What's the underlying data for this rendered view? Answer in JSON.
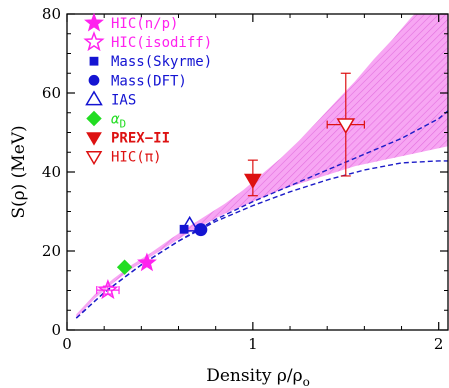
{
  "chart_data": {
    "type": "scatter",
    "title": "",
    "xlabel": "Density ρ/ρ",
    "xlabel_sub": "o",
    "ylabel": "S(ρ)  (MeV)",
    "xlim": [
      0,
      2.05
    ],
    "ylim": [
      0,
      80
    ],
    "xticks": [
      0,
      1,
      2
    ],
    "yticks": [
      0,
      20,
      40,
      60,
      80
    ],
    "xtick_labels": [
      "0",
      "1",
      "2"
    ],
    "ytick_labels": [
      "0",
      "20",
      "40",
      "60",
      "80"
    ],
    "grid": false,
    "legend_position": "top-left",
    "colors": {
      "band_fill": "#f7a6f3",
      "band_hatch": "#e36fdf",
      "curve": "#1c1cc8",
      "magenta": "#ff22ee",
      "blue": "#1414d2",
      "green": "#22dd22",
      "red": "#dd1111"
    },
    "band": {
      "x": [
        0.05,
        0.15,
        0.25,
        0.35,
        0.45,
        0.55,
        0.65,
        0.75,
        0.85,
        0.95,
        1.05,
        1.15,
        1.25,
        1.35,
        1.45,
        1.55,
        1.65,
        1.75,
        1.85,
        1.95,
        2.05
      ],
      "lower": [
        3,
        8,
        12,
        15.5,
        18.5,
        21.5,
        24.5,
        27,
        29.5,
        31.5,
        33.5,
        35.5,
        37,
        38.5,
        40,
        41.5,
        42.5,
        43.5,
        44.5,
        45.5,
        46.5
      ],
      "upper": [
        4,
        9,
        13,
        16.5,
        19.5,
        22.8,
        26,
        29,
        32,
        35.5,
        39.5,
        43.5,
        48,
        53,
        58,
        63,
        68.5,
        73.5,
        79,
        84,
        89
      ]
    },
    "curves": [
      {
        "x": [
          0.05,
          0.2,
          0.4,
          0.6,
          0.8,
          1.0,
          1.2,
          1.4,
          1.6,
          1.8,
          2.0,
          2.05
        ],
        "y": [
          3,
          9.5,
          16.5,
          22.5,
          28,
          32.5,
          36.5,
          40.5,
          44.5,
          48.5,
          53.5,
          55.5
        ]
      },
      {
        "x": [
          0.05,
          0.2,
          0.4,
          0.6,
          0.8,
          1.0,
          1.2,
          1.4,
          1.6,
          1.8,
          2.0,
          2.05
        ],
        "y": [
          3,
          9.5,
          16.5,
          22.5,
          27.5,
          31.5,
          35,
          38,
          40.5,
          42.3,
          42.8,
          42.8
        ]
      }
    ],
    "series": [
      {
        "name": "HIC(n/p)",
        "marker": "star-filled",
        "color": "#ff22ee",
        "points": [
          {
            "x": 0.43,
            "y": 17,
            "xerr": 0,
            "yerr_low": 0,
            "yerr_high": 0
          }
        ]
      },
      {
        "name": "HIC(isodiff)",
        "marker": "star-open",
        "color": "#ff22ee",
        "points": [
          {
            "x": 0.22,
            "y": 10.1,
            "xerr": 0.06,
            "yerr_low": 1,
            "yerr_high": 1
          }
        ]
      },
      {
        "name": "Mass(Skyrme)",
        "marker": "square-filled",
        "color": "#1414d2",
        "points": [
          {
            "x": 0.63,
            "y": 25.5,
            "xerr": 0,
            "yerr_low": 0,
            "yerr_high": 0
          }
        ]
      },
      {
        "name": "Mass(DFT)",
        "marker": "circle-filled",
        "color": "#1414d2",
        "points": [
          {
            "x": 0.72,
            "y": 25.4,
            "xerr": 0,
            "yerr_low": 0,
            "yerr_high": 0
          }
        ]
      },
      {
        "name": "IAS",
        "marker": "triangle-open",
        "color": "#1414d2",
        "points": [
          {
            "x": 0.66,
            "y": 26.5,
            "xerr": 0,
            "yerr_low": 0,
            "yerr_high": 0
          }
        ]
      },
      {
        "name": "αD",
        "marker": "diamond-filled",
        "color": "#22dd22",
        "points": [
          {
            "x": 0.31,
            "y": 15.9,
            "xerr": 0,
            "yerr_low": 0,
            "yerr_high": 0
          }
        ]
      },
      {
        "name": "PREX-II",
        "marker": "triangle-down-filled",
        "color": "#dd1111",
        "points": [
          {
            "x": 1.0,
            "y": 38,
            "xerr": 0,
            "yerr_low": 4,
            "yerr_high": 5
          }
        ]
      },
      {
        "name": "HIC(π)",
        "marker": "triangle-down-open",
        "color": "#dd1111",
        "points": [
          {
            "x": 1.5,
            "y": 52,
            "xerr": 0.1,
            "yerr_low": 13,
            "yerr_high": 13
          }
        ]
      }
    ],
    "legend": [
      {
        "label": "HIC(n/p)",
        "marker": "star-filled",
        "color": "#ff22ee"
      },
      {
        "label": "HIC(isodiff)",
        "marker": "star-open",
        "color": "#ff22ee"
      },
      {
        "label": "Mass(Skyrme)",
        "marker": "square-filled",
        "color": "#1414d2"
      },
      {
        "label": "Mass(DFT)",
        "marker": "circle-filled",
        "color": "#1414d2"
      },
      {
        "label": "IAS",
        "marker": "triangle-open",
        "color": "#1414d2"
      },
      {
        "label": "α",
        "sub": "D",
        "marker": "diamond-filled",
        "color": "#22dd22"
      },
      {
        "label": "PREX−II",
        "marker": "triangle-down-filled",
        "color": "#dd1111"
      },
      {
        "label": "HIC(π)",
        "marker": "triangle-down-open",
        "color": "#dd1111"
      }
    ]
  }
}
